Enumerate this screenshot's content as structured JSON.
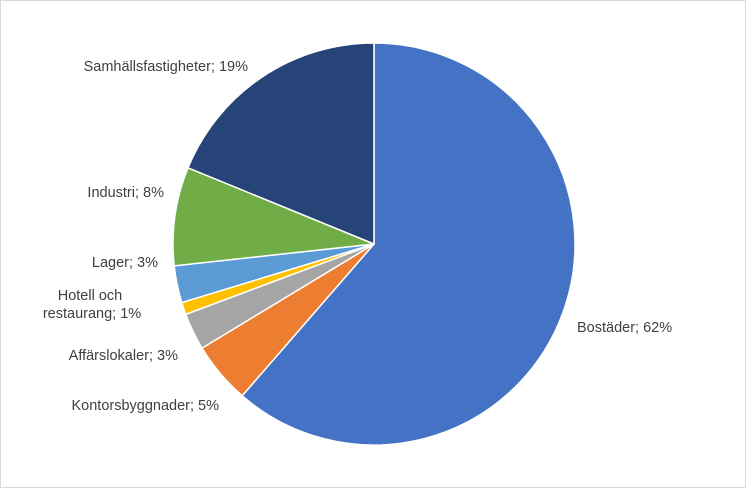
{
  "chart_data": {
    "type": "pie",
    "title": "",
    "start_angle_deg": 0,
    "direction": "clockwise",
    "legend": "none",
    "slices": [
      {
        "label": "Bostäder; 62%",
        "name": "Bostäder",
        "value": 62,
        "color": "#4472c4"
      },
      {
        "label": "Kontorsbyggnader; 5%",
        "name": "Kontorsbyggnader",
        "value": 5,
        "color": "#ed7d31"
      },
      {
        "label": "Affärslokaler; 3%",
        "name": "Affärslokaler",
        "value": 3,
        "color": "#a5a5a5"
      },
      {
        "label": "Hotell och restaurang; 1%",
        "name": "Hotell och restaurang",
        "value": 1,
        "color": "#ffc000"
      },
      {
        "label": "Lager; 3%",
        "name": "Lager",
        "value": 3,
        "color": "#5b9bd5"
      },
      {
        "label": "Industri; 8%",
        "name": "Industri",
        "value": 8,
        "color": "#70ad47"
      },
      {
        "label": "Samhällsfastigheter; 19%",
        "name": "Samhällsfastigheter",
        "value": 19,
        "color": "#264478"
      }
    ]
  }
}
